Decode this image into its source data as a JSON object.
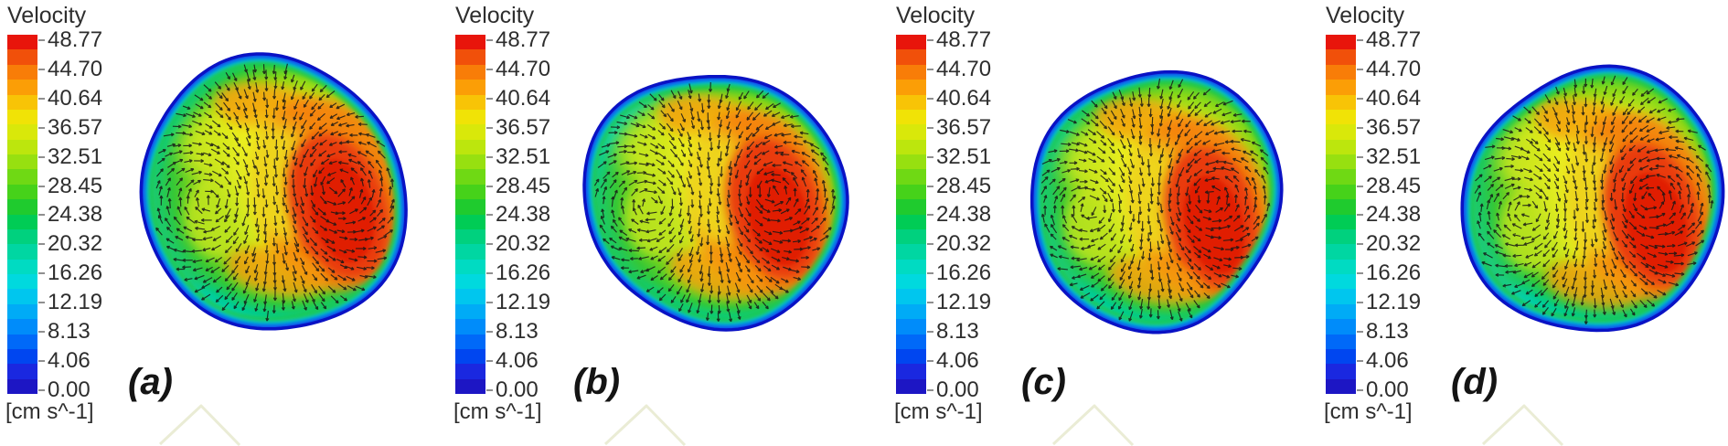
{
  "chart_data": {
    "type": "heatmap",
    "subtype": "cfd-velocity-contour-with-vectors",
    "title": "Velocity",
    "unit_label": "[cm s^-1]",
    "legend_position": "left",
    "grid": false,
    "colorbar_range": [
      0,
      48.77
    ],
    "colorbar_levels": [
      48.77,
      44.7,
      40.64,
      36.57,
      32.51,
      28.45,
      24.38,
      20.32,
      16.26,
      12.19,
      8.13,
      4.06,
      0.0
    ],
    "colorbar_tick_labels": [
      "48.77",
      "44.70",
      "40.64",
      "36.57",
      "32.51",
      "28.45",
      "24.38",
      "20.32",
      "16.26",
      "12.19",
      "8.13",
      "4.06",
      "0.00"
    ],
    "colorbar_colors_top_to_bottom": [
      "#E8150B",
      "#F1500A",
      "#F87D08",
      "#FB9E06",
      "#F8C406",
      "#F0E306",
      "#D9E80A",
      "#BCE60D",
      "#97E010",
      "#6FD914",
      "#46D21A",
      "#1FCB2E",
      "#00CC55",
      "#00D17E",
      "#00D6A2",
      "#00DBC2",
      "#00D9DE",
      "#00C6EE",
      "#00ABF6",
      "#008CFA",
      "#0069F8",
      "#0046F0",
      "#1A28E0",
      "#1D16C4"
    ],
    "panels": [
      {
        "label": "(a)"
      },
      {
        "label": "(b)"
      },
      {
        "label": "(c)"
      },
      {
        "label": "(d)"
      }
    ],
    "annotations": {
      "high_velocity_region": "red/orange crescent right of center, peak near 48.77 cm s^-1",
      "wall_region": "dark blue outline with cyan low-velocity ring at vessel wall (0-12 cm s^-1)",
      "interior": "yellow-green core with swirling secondary-flow vortex left of center",
      "vectors": "dense black in-plane velocity vectors following an S-shaped double-vortex pattern"
    }
  },
  "colors": {
    "background": "#ffffff",
    "legend_text": "#2e2e2e",
    "panel_label_text": "#141414",
    "vector_color": "#161616",
    "wall_outline": "#0A12C4",
    "axis_glyph": "#E8EAD0"
  }
}
